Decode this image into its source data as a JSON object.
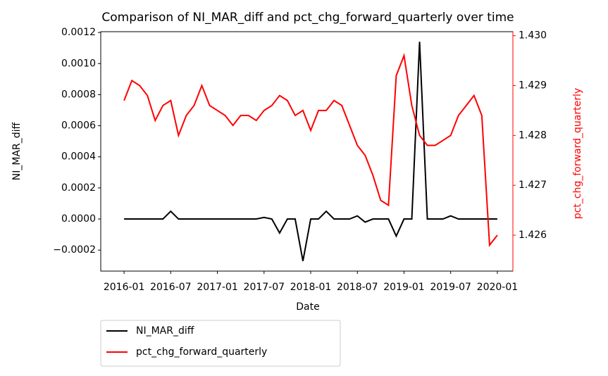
{
  "chart_data": {
    "type": "line",
    "title": "Comparison of NI_MAR_diff and pct_chg_forward_quarterly over time",
    "x_label": "Date",
    "y_label": "NI_MAR_diff",
    "y2_label": "pct_chg_forward_quarterly",
    "x": [
      "2016-01",
      "2016-02",
      "2016-03",
      "2016-04",
      "2016-05",
      "2016-06",
      "2016-07",
      "2016-08",
      "2016-09",
      "2016-10",
      "2016-11",
      "2016-12",
      "2017-01",
      "2017-02",
      "2017-03",
      "2017-04",
      "2017-05",
      "2017-06",
      "2017-07",
      "2017-08",
      "2017-09",
      "2017-10",
      "2017-11",
      "2017-12",
      "2018-01",
      "2018-02",
      "2018-03",
      "2018-04",
      "2018-05",
      "2018-06",
      "2018-07",
      "2018-08",
      "2018-09",
      "2018-10",
      "2018-11",
      "2018-12",
      "2019-01",
      "2019-02",
      "2019-03",
      "2019-04",
      "2019-05",
      "2019-06",
      "2019-07",
      "2019-08",
      "2019-09",
      "2019-10",
      "2019-11",
      "2019-12",
      "2020-01"
    ],
    "xlim": [
      "2015-10",
      "2020-03"
    ],
    "xticks": [
      "2016-01",
      "2016-07",
      "2017-01",
      "2017-07",
      "2018-01",
      "2018-07",
      "2019-01",
      "2019-07",
      "2020-01"
    ],
    "ylim": [
      -0.000335,
      0.001205
    ],
    "yticks": [
      {
        "value": -0.0002,
        "label": "−0.0002"
      },
      {
        "value": 0,
        "label": "0.0000"
      },
      0.0002,
      0.0004,
      0.0006,
      0.0008,
      {
        "value": 0.001,
        "label": "0.0010"
      },
      0.0012
    ],
    "y2lim": [
      1.42528,
      1.43008
    ],
    "y2ticks": [
      1.426,
      1.427,
      1.428,
      1.429,
      {
        "value": 1.43,
        "label": "1.430"
      }
    ],
    "y2_color": "#ff0000",
    "legend": "below",
    "series": [
      {
        "name": "NI_MAR_diff",
        "color": "#000000",
        "values": [
          0,
          0,
          0,
          0,
          0,
          0,
          5e-05,
          0,
          0,
          0,
          0,
          0,
          0,
          0,
          0,
          0,
          0,
          0,
          1e-05,
          0,
          -9e-05,
          0,
          0,
          -0.00027,
          0,
          0,
          5e-05,
          0,
          0,
          0,
          2e-05,
          -2e-05,
          0,
          0,
          0,
          -0.00011,
          0,
          0,
          0.00114,
          0,
          0,
          0,
          2e-05,
          0,
          0,
          0,
          0,
          0,
          0
        ]
      },
      {
        "name": "pct_chg_forward_quarterly",
        "color": "#ff0000",
        "axis": "y2",
        "values": [
          1.4287,
          1.4291,
          1.429,
          1.4288,
          1.4283,
          1.4286,
          1.4287,
          1.428,
          1.4284,
          1.4286,
          1.429,
          1.4286,
          1.4285,
          1.4284,
          1.4282,
          1.4284,
          1.4284,
          1.4283,
          1.4285,
          1.4286,
          1.4288,
          1.4287,
          1.4284,
          1.4285,
          1.4281,
          1.4285,
          1.4285,
          1.4287,
          1.4286,
          1.4282,
          1.4278,
          1.4276,
          1.4272,
          1.4267,
          1.4266,
          1.4292,
          1.4296,
          1.4286,
          1.428,
          1.4278,
          1.4278,
          1.4279,
          1.428,
          1.4284,
          1.4286,
          1.4288,
          1.4284,
          1.4258,
          1.426
        ]
      }
    ]
  }
}
